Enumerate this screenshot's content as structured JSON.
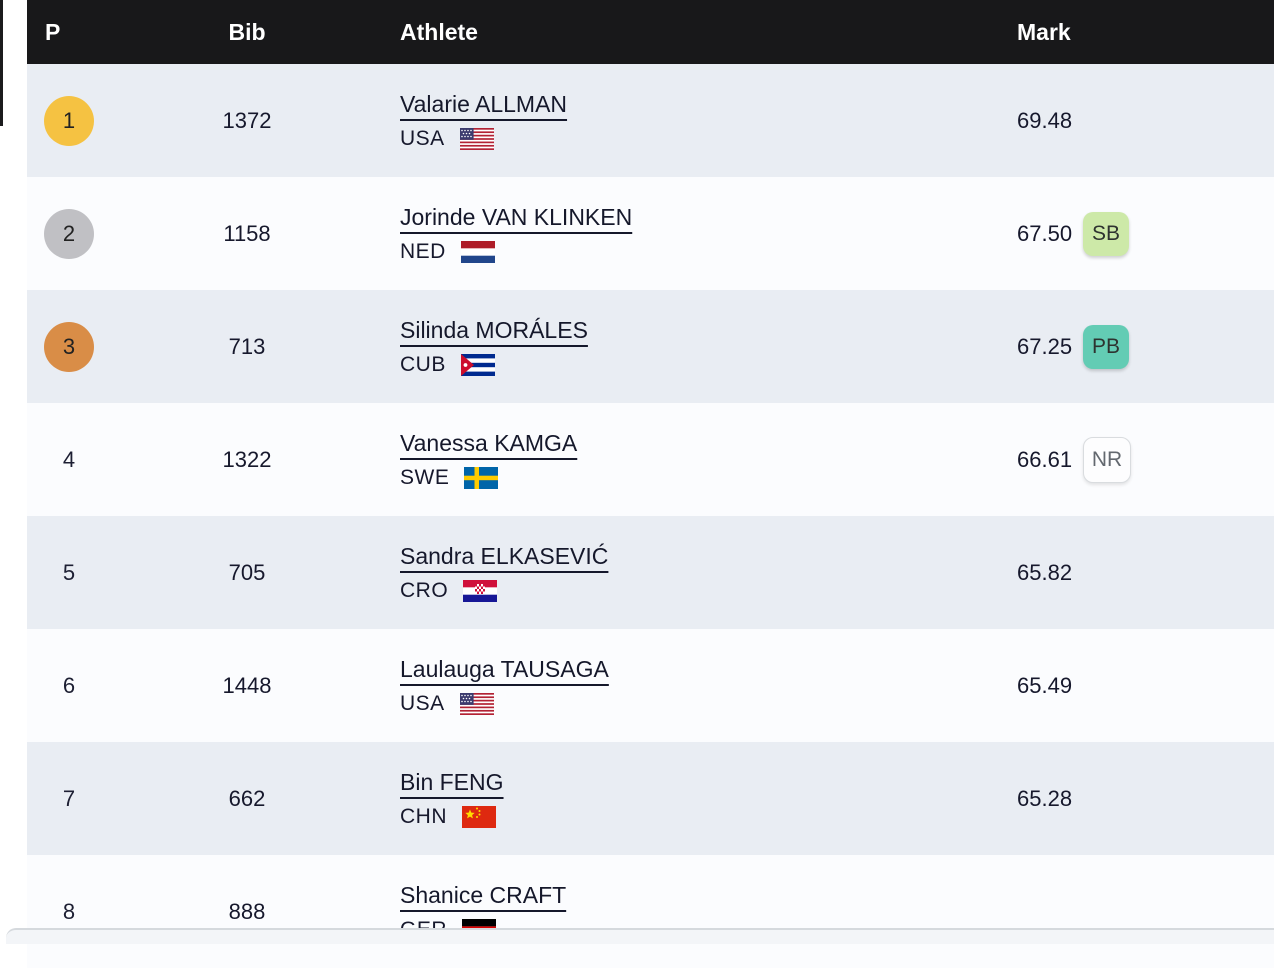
{
  "table": {
    "columns": [
      "P",
      "Bib",
      "Athlete",
      "Mark"
    ],
    "rows": [
      {
        "pos": "1",
        "medal": "gold",
        "bib": "1372",
        "name": "Valarie ALLMAN",
        "country": "USA",
        "mark": "69.48",
        "badge": null
      },
      {
        "pos": "2",
        "medal": "silver",
        "bib": "1158",
        "name": "Jorinde VAN KLINKEN",
        "country": "NED",
        "mark": "67.50",
        "badge": "SB"
      },
      {
        "pos": "3",
        "medal": "bronze",
        "bib": "713",
        "name": "Silinda MORÁLES",
        "country": "CUB",
        "mark": "67.25",
        "badge": "PB"
      },
      {
        "pos": "4",
        "medal": null,
        "bib": "1322",
        "name": "Vanessa KAMGA",
        "country": "SWE",
        "mark": "66.61",
        "badge": "NR"
      },
      {
        "pos": "5",
        "medal": null,
        "bib": "705",
        "name": "Sandra ELKASEVIĆ",
        "country": "CRO",
        "mark": "65.82",
        "badge": null
      },
      {
        "pos": "6",
        "medal": null,
        "bib": "1448",
        "name": "Laulauga TAUSAGA",
        "country": "USA",
        "mark": "65.49",
        "badge": null
      },
      {
        "pos": "7",
        "medal": null,
        "bib": "662",
        "name": "Bin FENG",
        "country": "CHN",
        "mark": "65.28",
        "badge": null
      },
      {
        "pos": "8",
        "medal": null,
        "bib": "888",
        "name": "Shanice CRAFT",
        "country": "GER",
        "mark": "",
        "badge": null
      }
    ]
  },
  "colors": {
    "header_bg": "#18181a",
    "header_text": "#ffffff",
    "row_shaded": "#e9edf3",
    "row_plain": "#fbfcfe",
    "text": "#15182b",
    "medal_gold": "#f5c242",
    "medal_silver": "#c0c0c4",
    "medal_bronze": "#d98d47",
    "badge_sb_bg": "#cde9a8",
    "badge_pb_bg": "#63ccb4",
    "badge_nr_bg": "#fdfdfe",
    "badge_nr_border": "#d9dcdf"
  }
}
